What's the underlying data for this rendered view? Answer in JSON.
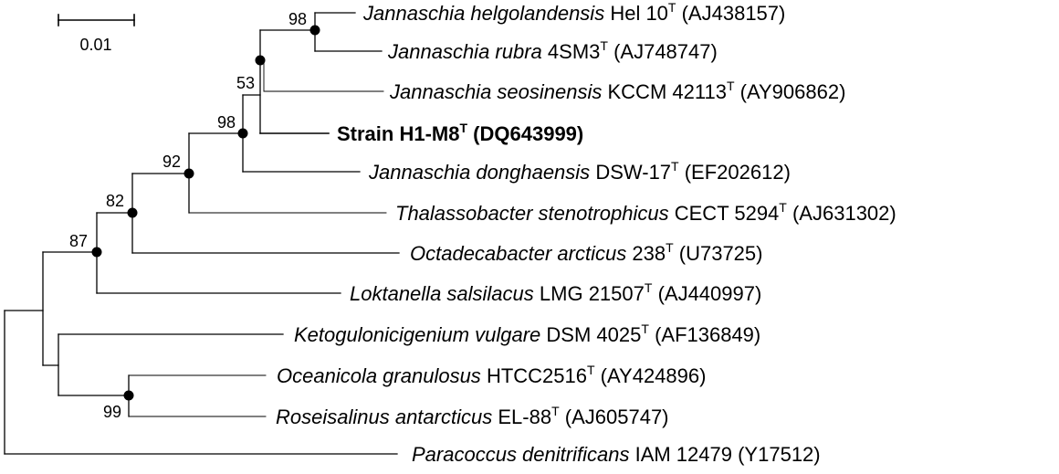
{
  "scale_bar": {
    "label": "0.01"
  },
  "taxa": [
    {
      "id": "t1",
      "genus_species": "Jannaschia helgolandensis",
      "strain": "Hel 10",
      "type_marker": "T",
      "accession": "(AJ438157)",
      "bold": false
    },
    {
      "id": "t2",
      "genus_species": "Jannaschia rubra",
      "strain": "4SM3",
      "type_marker": "T",
      "accession": "(AJ748747)",
      "bold": false
    },
    {
      "id": "t3",
      "genus_species": "Jannaschia seosinensis",
      "strain": "KCCM 42113",
      "type_marker": "T",
      "accession": "(AY906862)",
      "bold": false
    },
    {
      "id": "t4",
      "genus_species": "",
      "strain": "Strain H1-M8",
      "type_marker": "T",
      "accession": "(DQ643999)",
      "bold": true
    },
    {
      "id": "t5",
      "genus_species": "Jannaschia donghaensis",
      "strain": "DSW-17",
      "type_marker": "T",
      "accession": "(EF202612)",
      "bold": false
    },
    {
      "id": "t6",
      "genus_species": "Thalassobacter stenotrophicus",
      "strain": "CECT 5294",
      "type_marker": "T",
      "accession": "(AJ631302)",
      "bold": false
    },
    {
      "id": "t7",
      "genus_species": "Octadecabacter arcticus",
      "strain": "238",
      "type_marker": "T",
      "accession": "(U73725)",
      "bold": false
    },
    {
      "id": "t8",
      "genus_species": "Loktanella salsilacus",
      "strain": "LMG 21507",
      "type_marker": "T",
      "accession": "(AJ440997)",
      "bold": false
    },
    {
      "id": "t9",
      "genus_species": "Ketogulonicigenium vulgare",
      "strain": "DSM 4025",
      "type_marker": "T",
      "accession": "(AF136849)",
      "bold": false
    },
    {
      "id": "t10",
      "genus_species": "Oceanicola granulosus",
      "strain": "HTCC2516",
      "type_marker": "T",
      "accession": "(AY424896)",
      "bold": false
    },
    {
      "id": "t11",
      "genus_species": "Roseisalinus antarcticus",
      "strain": "EL-88",
      "type_marker": "T",
      "accession": "(AJ605747)",
      "bold": false
    },
    {
      "id": "t12",
      "genus_species": "Paracoccus denitrificans",
      "strain": "IAM 12479",
      "type_marker": "",
      "accession": "(Y17512)",
      "bold": false
    }
  ],
  "bootstrap_values": [
    {
      "node": "n-helgolandensis-rubra",
      "value": "98"
    },
    {
      "node": "n-jannaschia-core",
      "value": "53"
    },
    {
      "node": "n-jannaschia-all",
      "value": "98"
    },
    {
      "node": "n-thalassobacter",
      "value": "92"
    },
    {
      "node": "n-octadecabacter",
      "value": "82"
    },
    {
      "node": "n-loktanella",
      "value": "87"
    },
    {
      "node": "n-oceanicola-roseisalinus",
      "value": "99"
    }
  ]
}
